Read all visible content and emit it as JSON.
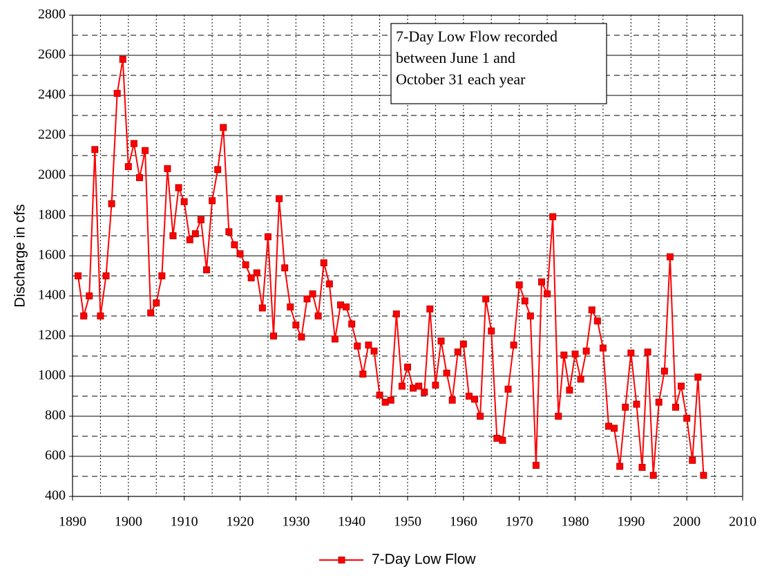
{
  "chart_data": {
    "type": "line",
    "y_label": "Discharge in cfs",
    "annotation": [
      "7-Day Low Flow recorded",
      "between June 1 and",
      "October 31 each year"
    ],
    "x": [
      1891,
      1892,
      1893,
      1894,
      1895,
      1896,
      1897,
      1898,
      1899,
      1900,
      1901,
      1902,
      1903,
      1904,
      1905,
      1906,
      1907,
      1908,
      1909,
      1910,
      1911,
      1912,
      1913,
      1914,
      1915,
      1916,
      1917,
      1918,
      1919,
      1920,
      1921,
      1922,
      1923,
      1924,
      1925,
      1926,
      1927,
      1928,
      1929,
      1930,
      1931,
      1932,
      1933,
      1934,
      1935,
      1936,
      1937,
      1938,
      1939,
      1940,
      1941,
      1942,
      1943,
      1944,
      1945,
      1946,
      1947,
      1948,
      1949,
      1950,
      1951,
      1952,
      1953,
      1954,
      1955,
      1956,
      1957,
      1958,
      1959,
      1960,
      1961,
      1962,
      1963,
      1964,
      1965,
      1966,
      1967,
      1968,
      1969,
      1970,
      1971,
      1972,
      1973,
      1974,
      1975,
      1976,
      1977,
      1978,
      1979,
      1980,
      1981,
      1982,
      1983,
      1984,
      1985,
      1986,
      1987,
      1988,
      1989,
      1990,
      1991,
      1992,
      1993,
      1994,
      1995,
      1996,
      1997,
      1998,
      1999,
      2000,
      2001,
      2002,
      2003
    ],
    "series": [
      {
        "name": "7-Day Low Flow",
        "color": "#ff0000",
        "values": [
          1500,
          1300,
          1400,
          2130,
          1300,
          1500,
          1860,
          2410,
          2580,
          2045,
          2160,
          1990,
          2125,
          1315,
          1365,
          1500,
          2035,
          1700,
          1940,
          1870,
          1680,
          1710,
          1780,
          1530,
          1875,
          2030,
          2240,
          1720,
          1655,
          1610,
          1555,
          1490,
          1515,
          1340,
          1695,
          1200,
          1885,
          1540,
          1345,
          1255,
          1195,
          1385,
          1410,
          1300,
          1565,
          1460,
          1185,
          1355,
          1345,
          1260,
          1150,
          1010,
          1155,
          1125,
          905,
          870,
          880,
          1310,
          950,
          1045,
          940,
          950,
          920,
          1335,
          955,
          1175,
          1015,
          880,
          1120,
          1160,
          900,
          885,
          800,
          1385,
          1225,
          690,
          680,
          935,
          1155,
          1455,
          1375,
          1300,
          555,
          1470,
          1410,
          1795,
          800,
          1105,
          930,
          1110,
          985,
          1125,
          1330,
          1275,
          1140,
          750,
          740,
          550,
          845,
          1115,
          860,
          545,
          1120,
          505,
          870,
          1025,
          1595,
          845,
          950,
          790,
          580,
          995,
          505
        ]
      }
    ],
    "xlim": [
      1890,
      2010
    ],
    "xticks": [
      1890,
      1900,
      1910,
      1920,
      1930,
      1940,
      1950,
      1960,
      1970,
      1980,
      1990,
      2000,
      2010
    ],
    "ylim": [
      400,
      2800
    ],
    "yticks": [
      400,
      600,
      800,
      1000,
      1200,
      1400,
      1600,
      1800,
      2000,
      2200,
      2400,
      2600,
      2800
    ],
    "grid": true,
    "minor_grid": true,
    "legend": "bottom"
  }
}
